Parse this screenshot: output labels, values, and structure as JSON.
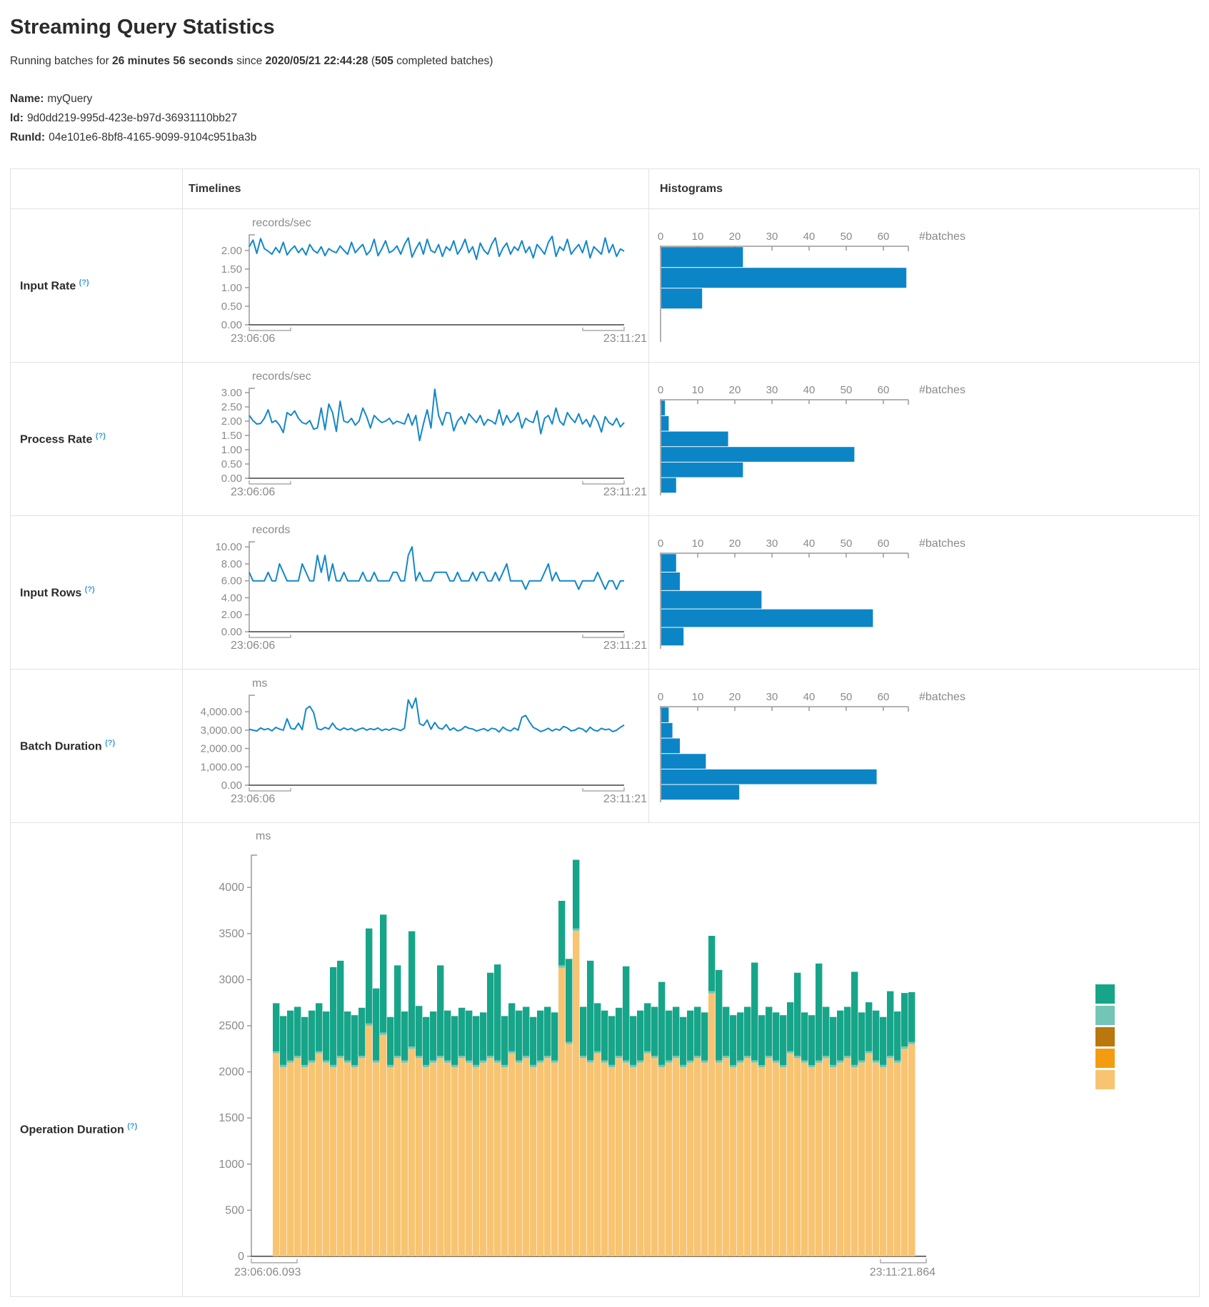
{
  "page": {
    "title": "Streaming Query Statistics",
    "subtitle": {
      "prefix": "Running batches for ",
      "duration": "26 minutes 56 seconds",
      "mid": " since ",
      "start_time": "2020/05/21 22:44:28",
      "paren": " (",
      "batches": "505",
      "suffix": " completed batches)"
    },
    "meta": [
      {
        "label": "Name:",
        "value": "myQuery"
      },
      {
        "label": "Id:",
        "value": "9d0dd219-995d-423e-b97d-36931110bb27"
      },
      {
        "label": "RunId:",
        "value": "04e101e6-8bf8-4165-9099-9104c951ba3b"
      }
    ]
  },
  "table": {
    "headers": {
      "timelines": "Timelines",
      "histograms": "Histograms"
    }
  },
  "colors": {
    "line": "#1387C9",
    "hist_bar": "#0C85C7",
    "axis": "#999999",
    "axis_strong": "#707070",
    "tick_text": "#8A8A8A",
    "help": "#3E9BD8"
  },
  "chart_data": [
    {
      "name": "input-rate",
      "label": "Input Rate",
      "help": "(?)",
      "timeline": {
        "type": "line",
        "unit": "records/sec",
        "x_start": "23:06:06",
        "x_end": "23:11:21",
        "ymax": 2.42,
        "ytick_vals": [
          2,
          1.5,
          1,
          0.5,
          0
        ],
        "ytick_labels": [
          "2.00",
          "1.50",
          "1.00",
          "0.50",
          "0.00"
        ],
        "values": [
          2.1,
          2.28,
          1.92,
          2.32,
          2.05,
          1.98,
          1.9,
          2.08,
          1.94,
          2.22,
          1.88,
          2.02,
          2.12,
          1.94,
          2.06,
          1.88,
          2.16,
          2.0,
          1.93,
          2.1,
          1.86,
          2.05,
          1.98,
          1.94,
          2.12,
          2.0,
          1.9,
          2.22,
          1.94,
          2.06,
          2.16,
          1.88,
          2.0,
          2.3,
          1.86,
          2.04,
          2.26,
          1.94,
          2.0,
          2.12,
          1.9,
          2.16,
          2.34,
          1.82,
          2.04,
          2.22,
          1.9,
          2.3,
          2.0,
          1.94,
          2.16,
          1.84,
          2.1,
          2.0,
          2.26,
          1.9,
          2.06,
          2.3,
          1.94,
          2.1,
          1.76,
          2.2,
          2.0,
          1.9,
          2.16,
          2.34,
          1.84,
          2.06,
          2.2,
          1.9,
          2.1,
          2.0,
          2.26,
          1.94,
          2.1,
          1.8,
          2.16,
          2.04,
          1.9,
          2.22,
          2.38,
          1.84,
          2.1,
          2.0,
          2.3,
          1.9,
          2.04,
          2.16,
          1.94,
          2.26,
          1.8,
          2.1,
          2.0,
          1.9,
          2.34,
          1.94,
          2.16,
          1.84,
          2.04,
          1.98
        ]
      },
      "histogram": {
        "type": "bar",
        "xlabel": "#batches",
        "tick_vals": [
          0,
          10,
          20,
          30,
          40,
          50,
          60
        ],
        "tick_labels": [
          "0",
          "10",
          "20",
          "30",
          "40",
          "50",
          "60"
        ],
        "values": [
          22,
          66,
          11
        ]
      }
    },
    {
      "name": "process-rate",
      "label": "Process Rate",
      "help": "(?)",
      "timeline": {
        "type": "line",
        "unit": "records/sec",
        "x_start": "23:06:06",
        "x_end": "23:11:21",
        "ymax": 3.15,
        "ytick_vals": [
          3,
          2.5,
          2,
          1.5,
          1,
          0.5,
          0
        ],
        "ytick_labels": [
          "3.00",
          "2.50",
          "2.00",
          "1.50",
          "1.00",
          "0.50",
          "0.00"
        ],
        "values": [
          2.2,
          2.02,
          1.9,
          1.92,
          2.1,
          2.4,
          1.95,
          2.02,
          1.86,
          1.6,
          2.3,
          2.2,
          2.36,
          2.1,
          1.95,
          1.9,
          2.02,
          1.72,
          1.76,
          2.46,
          1.7,
          2.6,
          2.3,
          1.64,
          2.7,
          2.0,
          1.95,
          2.1,
          1.86,
          2.0,
          2.46,
          2.16,
          1.76,
          2.2,
          2.06,
          1.95,
          2.0,
          2.1,
          1.9,
          2.0,
          1.95,
          1.9,
          2.26,
          1.86,
          2.2,
          1.32,
          1.9,
          2.4,
          1.76,
          3.12,
          2.2,
          1.86,
          2.3,
          2.28,
          1.66,
          2.0,
          2.16,
          1.9,
          2.26,
          2.1,
          1.95,
          2.2,
          1.86,
          2.06,
          2.0,
          1.9,
          2.4,
          1.86,
          2.2,
          1.95,
          2.06,
          2.3,
          1.76,
          2.1,
          2.0,
          1.95,
          2.36,
          1.56,
          2.1,
          2.2,
          1.9,
          2.46,
          2.0,
          1.86,
          2.3,
          2.1,
          1.95,
          2.26,
          1.9,
          2.06,
          1.8,
          2.2,
          2.0,
          1.62,
          2.16,
          1.95,
          1.86,
          2.1,
          1.8,
          1.95
        ]
      },
      "histogram": {
        "type": "bar",
        "xlabel": "#batches",
        "tick_vals": [
          0,
          10,
          20,
          30,
          40,
          50,
          60
        ],
        "tick_labels": [
          "0",
          "10",
          "20",
          "30",
          "40",
          "50",
          "60"
        ],
        "values": [
          1,
          2,
          18,
          52,
          22,
          4
        ]
      }
    },
    {
      "name": "input-rows",
      "label": "Input Rows",
      "help": "(?)",
      "timeline": {
        "type": "line",
        "unit": "records",
        "x_start": "23:06:06",
        "x_end": "23:11:21",
        "ymax": 10.6,
        "ytick_vals": [
          10,
          8,
          6,
          4,
          2,
          0
        ],
        "ytick_labels": [
          "10.00",
          "8.00",
          "6.00",
          "4.00",
          "2.00",
          "0.00"
        ],
        "values": [
          7,
          6,
          6,
          6,
          6,
          7,
          6,
          6,
          8,
          7,
          6,
          6,
          6,
          6,
          8,
          7,
          6,
          6,
          9,
          7,
          9,
          6,
          8,
          6,
          6,
          7,
          6,
          6,
          6,
          6,
          7,
          6,
          6,
          7,
          6,
          6,
          6,
          6,
          7,
          7,
          6,
          6,
          9,
          10,
          6,
          7,
          6,
          6,
          6,
          7,
          7,
          7,
          7,
          6,
          6,
          7,
          6,
          6,
          6,
          7,
          6,
          7,
          7,
          6,
          6,
          7,
          6,
          7,
          8,
          6,
          6,
          6,
          6,
          5,
          6,
          6,
          6,
          6,
          7,
          8,
          6,
          7,
          6,
          6,
          6,
          6,
          6,
          5,
          6,
          6,
          6,
          6,
          7,
          6,
          5,
          6,
          6,
          5,
          6,
          6
        ]
      },
      "histogram": {
        "type": "bar",
        "xlabel": "#batches",
        "tick_vals": [
          0,
          10,
          20,
          30,
          40,
          50,
          60
        ],
        "tick_labels": [
          "0",
          "10",
          "20",
          "30",
          "40",
          "50",
          "60"
        ],
        "values": [
          4,
          5,
          27,
          57,
          6
        ]
      }
    },
    {
      "name": "batch-duration",
      "label": "Batch Duration",
      "help": "(?)",
      "timeline": {
        "type": "line",
        "unit": "ms",
        "x_start": "23:06:06",
        "x_end": "23:11:21",
        "ymax": 4900,
        "ytick_vals": [
          4000,
          3000,
          2000,
          1000,
          0
        ],
        "ytick_labels": [
          "4,000.00",
          "3,000.00",
          "2,000.00",
          "1,000.00",
          "0.00"
        ],
        "values": [
          3050,
          3000,
          2950,
          3120,
          3020,
          3080,
          2960,
          3150,
          3060,
          3000,
          3620,
          3100,
          3050,
          3380,
          3020,
          4150,
          4300,
          3950,
          3080,
          3020,
          3150,
          3060,
          3380,
          3100,
          3000,
          3120,
          3020,
          3100,
          2960,
          3050,
          3120,
          3000,
          3080,
          3020,
          3120,
          2980,
          3060,
          3000,
          3100,
          3050,
          2980,
          3100,
          4650,
          4200,
          4750,
          3350,
          3250,
          3550,
          3050,
          3420,
          3120,
          3050,
          3300,
          3000,
          3120,
          2960,
          3020,
          3200,
          3100,
          3060,
          2950,
          3020,
          3080,
          2960,
          3100,
          3060,
          2900,
          3160,
          3020,
          2950,
          3120,
          3000,
          3700,
          3800,
          3450,
          3150,
          3050,
          2920,
          3000,
          3100,
          2950,
          3060,
          3000,
          3200,
          3120,
          2960,
          3000,
          3120,
          3060,
          2900,
          3160,
          3000,
          2950,
          3100,
          3020,
          3060,
          2920,
          3000,
          3150,
          3280
        ]
      },
      "histogram": {
        "type": "bar",
        "xlabel": "#batches",
        "tick_vals": [
          0,
          10,
          20,
          30,
          40,
          50,
          60
        ],
        "tick_labels": [
          "0",
          "10",
          "20",
          "30",
          "40",
          "50",
          "60"
        ],
        "values": [
          2,
          3,
          5,
          12,
          58,
          21
        ]
      }
    },
    {
      "name": "operation-duration",
      "label": "Operation Duration",
      "help": "(?)",
      "stacked": {
        "type": "stacked-bar",
        "unit": "ms",
        "x_start": "23:06:06.093",
        "x_end": "23:11:21.864",
        "ymax": 4350,
        "ytick_vals": [
          4000,
          3500,
          3000,
          2500,
          2000,
          1500,
          1000,
          500,
          0
        ],
        "ytick_labels": [
          "4000",
          "3500",
          "3000",
          "2500",
          "2000",
          "1500",
          "1000",
          "500",
          "0"
        ],
        "base_color": "#F8C471",
        "sliver_color": "#73C6B6",
        "top_color": "#17A589",
        "sliver_value": 25,
        "base_values": [
          2200,
          2050,
          2100,
          2150,
          2050,
          2100,
          2200,
          2100,
          2050,
          2150,
          2100,
          2050,
          2150,
          2500,
          2100,
          2400,
          2050,
          2150,
          2100,
          2250,
          2150,
          2050,
          2100,
          2150,
          2100,
          2050,
          2150,
          2100,
          2050,
          2100,
          2150,
          2100,
          2050,
          2200,
          2100,
          2150,
          2050,
          2100,
          2150,
          2100,
          3130,
          2300,
          3530,
          2150,
          2100,
          2200,
          2100,
          2050,
          2150,
          2100,
          2050,
          2100,
          2200,
          2150,
          2050,
          2100,
          2150,
          2050,
          2100,
          2150,
          2100,
          2850,
          2100,
          2150,
          2050,
          2100,
          2150,
          2100,
          2050,
          2150,
          2100,
          2050,
          2200,
          2150,
          2100,
          2050,
          2100,
          2150,
          2050,
          2100,
          2150,
          2050,
          2100,
          2200,
          2100,
          2050,
          2150,
          2100,
          2250,
          2300
        ],
        "top_values": [
          520,
          530,
          540,
          530,
          520,
          540,
          520,
          530,
          1060,
          1030,
          530,
          540,
          520,
          1030,
          780,
          1280,
          520,
          980,
          530,
          1250,
          540,
          520,
          530,
          980,
          540,
          530,
          520,
          540,
          530,
          520,
          900,
          1040,
          530,
          520,
          540,
          530,
          520,
          540,
          530,
          520,
          700,
          900,
          745,
          530,
          1080,
          520,
          540,
          530,
          520,
          1020,
          530,
          540,
          520,
          530,
          900,
          540,
          530,
          520,
          540,
          530,
          520,
          600,
          980,
          530,
          540,
          520,
          530,
          1060,
          540,
          530,
          520,
          540,
          530,
          900,
          520,
          540,
          1050,
          530,
          520,
          540,
          530,
          1010,
          520,
          530,
          540,
          520,
          700,
          530,
          580,
          540
        ],
        "legend_colors": [
          "#17A589",
          "#73C6B6",
          "#B9770E",
          "#F39C12",
          "#F8C471"
        ]
      }
    }
  ]
}
